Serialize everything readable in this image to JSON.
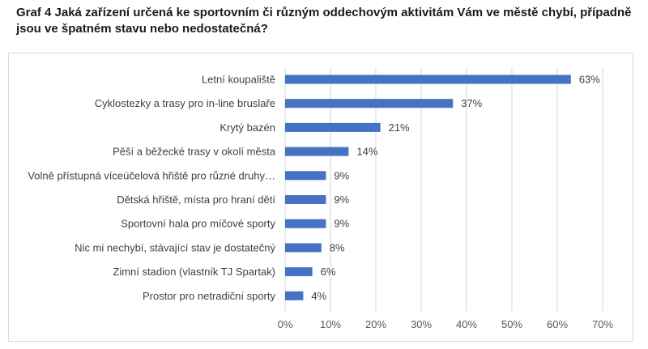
{
  "title": "Graf 4 Jaká zařízení určená ke sportovním či různým oddechovým aktivitám Vám ve městě chybí, případně jsou ve špatném stavu nebo nedostatečná?",
  "colors": {
    "bar": "#4472c4",
    "grid": "#d9d9d9",
    "text": "#404040"
  },
  "chart_data": {
    "type": "bar",
    "orientation": "horizontal",
    "title": "",
    "xlabel": "",
    "ylabel": "",
    "xlim": [
      0,
      70
    ],
    "xticks": [
      0,
      10,
      20,
      30,
      40,
      50,
      60,
      70
    ],
    "tick_suffix": "%",
    "grid": true,
    "categories": [
      "Letní koupaliště",
      "Cyklostezky a trasy pro in-line bruslaře",
      "Krytý bazén",
      "Pěší a běžecké trasy v okolí města",
      "Volně přístupná víceúčelová hřiště pro různé druhy…",
      "Dětská hřiště, místa pro hraní dětí",
      "Sportovní hala pro míčové sporty",
      "Nic mi nechybí, stávající stav je dostatečný",
      "Zimní stadion (vlastník TJ Spartak)",
      "Prostor pro netradiční sporty"
    ],
    "values": [
      63,
      37,
      21,
      14,
      9,
      9,
      9,
      8,
      6,
      4
    ],
    "value_labels": [
      "63%",
      "37%",
      "21%",
      "14%",
      "9%",
      "9%",
      "9%",
      "8%",
      "6%",
      "4%"
    ]
  }
}
